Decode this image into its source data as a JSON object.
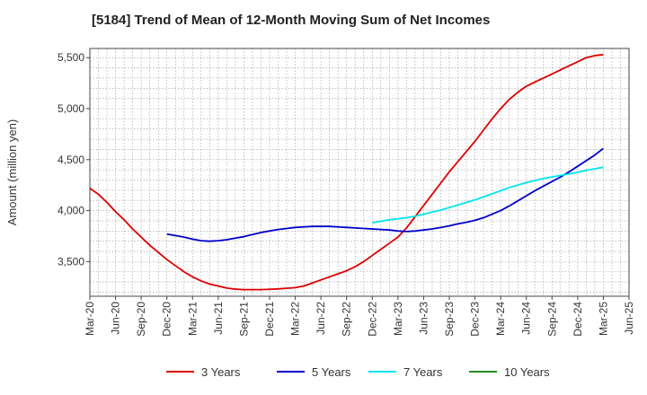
{
  "title": "[5184]  Trend of Mean of 12-Month Moving Sum of Net Incomes",
  "chart_data": {
    "type": "line",
    "title": "[5184]  Trend of Mean of 12-Month Moving Sum of Net Incomes",
    "xlabel": "",
    "ylabel": "Amount (million yen)",
    "x_ticks": [
      "Mar-20",
      "Jun-20",
      "Sep-20",
      "Dec-20",
      "Mar-21",
      "Jun-21",
      "Sep-21",
      "Dec-21",
      "Mar-22",
      "Jun-22",
      "Sep-22",
      "Dec-22",
      "Mar-23",
      "Jun-23",
      "Sep-23",
      "Dec-23",
      "Mar-24",
      "Jun-24",
      "Sep-24",
      "Dec-24",
      "Mar-25",
      "Jun-25"
    ],
    "y_ticks": [
      3500,
      4000,
      4500,
      5000,
      5500
    ],
    "ylim": [
      3160,
      5590
    ],
    "grid": true,
    "legend_position": "bottom",
    "series": [
      {
        "name": "3 Years",
        "color": "#dd0000",
        "x": [
          "Mar-20",
          "Apr-20",
          "May-20",
          "Jun-20",
          "Jul-20",
          "Aug-20",
          "Sep-20",
          "Oct-20",
          "Nov-20",
          "Dec-20",
          "Jan-21",
          "Feb-21",
          "Mar-21",
          "Apr-21",
          "May-21",
          "Jun-21",
          "Jul-21",
          "Aug-21",
          "Sep-21",
          "Oct-21",
          "Nov-21",
          "Dec-21",
          "Jan-22",
          "Feb-22",
          "Mar-22",
          "Apr-22",
          "May-22",
          "Jun-22",
          "Jul-22",
          "Aug-22",
          "Sep-22",
          "Oct-22",
          "Nov-22",
          "Dec-22",
          "Jan-23",
          "Feb-23",
          "Mar-23",
          "Apr-23",
          "May-23",
          "Jun-23",
          "Jul-23",
          "Aug-23",
          "Sep-23",
          "Oct-23",
          "Nov-23",
          "Dec-23",
          "Jan-24",
          "Feb-24",
          "Mar-24",
          "Apr-24",
          "May-24",
          "Jun-24",
          "Jul-24",
          "Aug-24",
          "Sep-24",
          "Oct-24",
          "Nov-24",
          "Dec-24",
          "Jan-25",
          "Feb-25",
          "Mar-25"
        ],
        "values": [
          4220,
          4160,
          4080,
          3990,
          3910,
          3820,
          3740,
          3660,
          3590,
          3520,
          3460,
          3400,
          3350,
          3310,
          3280,
          3260,
          3240,
          3230,
          3225,
          3225,
          3225,
          3228,
          3232,
          3238,
          3245,
          3260,
          3290,
          3320,
          3350,
          3380,
          3410,
          3450,
          3500,
          3560,
          3620,
          3680,
          3740,
          3830,
          3940,
          4050,
          4160,
          4270,
          4380,
          4480,
          4580,
          4680,
          4790,
          4900,
          5000,
          5090,
          5160,
          5220,
          5260,
          5300,
          5340,
          5380,
          5420,
          5460,
          5500,
          5520,
          5530
        ]
      },
      {
        "name": "5 Years",
        "color": "#0000cc",
        "x": [
          "Dec-20",
          "Jan-21",
          "Feb-21",
          "Mar-21",
          "Apr-21",
          "May-21",
          "Jun-21",
          "Jul-21",
          "Aug-21",
          "Sep-21",
          "Oct-21",
          "Nov-21",
          "Dec-21",
          "Jan-22",
          "Feb-22",
          "Mar-22",
          "Apr-22",
          "May-22",
          "Jun-22",
          "Jul-22",
          "Aug-22",
          "Sep-22",
          "Oct-22",
          "Nov-22",
          "Dec-22",
          "Jan-23",
          "Feb-23",
          "Mar-23",
          "Apr-23",
          "May-23",
          "Jun-23",
          "Jul-23",
          "Aug-23",
          "Sep-23",
          "Oct-23",
          "Nov-23",
          "Dec-23",
          "Jan-24",
          "Feb-24",
          "Mar-24",
          "Apr-24",
          "May-24",
          "Jun-24",
          "Jul-24",
          "Aug-24",
          "Sep-24",
          "Oct-24",
          "Nov-24",
          "Dec-24",
          "Jan-25",
          "Feb-25",
          "Mar-25"
        ],
        "values": [
          3770,
          3755,
          3740,
          3720,
          3705,
          3700,
          3705,
          3715,
          3730,
          3745,
          3765,
          3785,
          3800,
          3815,
          3825,
          3835,
          3840,
          3845,
          3845,
          3845,
          3840,
          3835,
          3830,
          3825,
          3820,
          3815,
          3810,
          3800,
          3795,
          3800,
          3810,
          3820,
          3835,
          3850,
          3870,
          3885,
          3905,
          3930,
          3965,
          4000,
          4045,
          4095,
          4145,
          4195,
          4240,
          4285,
          4330,
          4380,
          4435,
          4490,
          4545,
          4610
        ]
      },
      {
        "name": "7 Years",
        "color": "#00e5ee",
        "x": [
          "Dec-22",
          "Jan-23",
          "Feb-23",
          "Mar-23",
          "Apr-23",
          "May-23",
          "Jun-23",
          "Jul-23",
          "Aug-23",
          "Sep-23",
          "Oct-23",
          "Nov-23",
          "Dec-23",
          "Jan-24",
          "Feb-24",
          "Mar-24",
          "Apr-24",
          "May-24",
          "Jun-24",
          "Jul-24",
          "Aug-24",
          "Sep-24",
          "Oct-24",
          "Nov-24",
          "Dec-24",
          "Jan-25",
          "Feb-25",
          "Mar-25"
        ],
        "values": [
          3880,
          3895,
          3910,
          3920,
          3930,
          3945,
          3965,
          3985,
          4005,
          4030,
          4055,
          4080,
          4105,
          4135,
          4165,
          4195,
          4225,
          4250,
          4275,
          4295,
          4315,
          4330,
          4345,
          4360,
          4375,
          4395,
          4410,
          4425
        ]
      },
      {
        "name": "10 Years",
        "color": "#228b22",
        "x": [],
        "values": []
      }
    ]
  }
}
